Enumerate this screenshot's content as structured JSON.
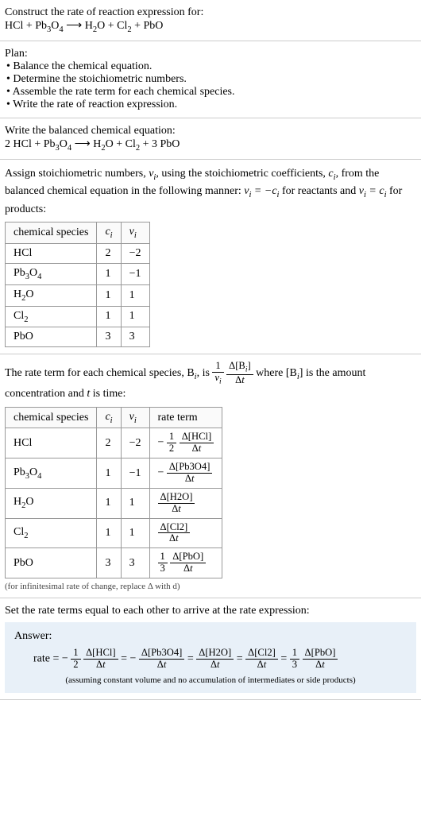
{
  "prompt": {
    "line1": "Construct the rate of reaction expression for:",
    "equation_plain": "HCl + Pb3O4 ⟶ H2O + Cl2 + PbO"
  },
  "plan": {
    "heading": "Plan:",
    "items": [
      "• Balance the chemical equation.",
      "• Determine the stoichiometric numbers.",
      "• Assemble the rate term for each chemical species.",
      "• Write the rate of reaction expression."
    ]
  },
  "balanced": {
    "heading": "Write the balanced chemical equation:",
    "equation_plain": "2 HCl + Pb3O4 ⟶ H2O + Cl2 + 3 PbO"
  },
  "stoich_intro": {
    "text_a": "Assign stoichiometric numbers, ",
    "nu_i": "νᵢ",
    "text_b": ", using the stoichiometric coefficients, ",
    "c_i": "cᵢ",
    "text_c": ", from the balanced chemical equation in the following manner: ",
    "rel1": "νᵢ = −cᵢ",
    "text_d": " for reactants and ",
    "rel2": "νᵢ = cᵢ",
    "text_e": " for products:"
  },
  "table1": {
    "headers": [
      "chemical species",
      "cᵢ",
      "νᵢ"
    ],
    "rows": [
      {
        "species": "HCl",
        "c": "2",
        "nu": "−2"
      },
      {
        "species": "Pb3O4",
        "c": "1",
        "nu": "−1"
      },
      {
        "species": "H2O",
        "c": "1",
        "nu": "1"
      },
      {
        "species": "Cl2",
        "c": "1",
        "nu": "1"
      },
      {
        "species": "PbO",
        "c": "3",
        "nu": "3"
      }
    ]
  },
  "rate_intro": {
    "text_a": "The rate term for each chemical species, B",
    "text_b": ", is ",
    "text_c": " where [B",
    "text_d": "] is the amount concentration and ",
    "t_var": "t",
    "text_e": " is time:"
  },
  "table2": {
    "headers": [
      "chemical species",
      "cᵢ",
      "νᵢ",
      "rate term"
    ],
    "rows": [
      {
        "species": "HCl",
        "c": "2",
        "nu": "−2",
        "sign": "−",
        "coef_num": "1",
        "coef_den": "2",
        "delta": "Δ[HCl]"
      },
      {
        "species": "Pb3O4",
        "c": "1",
        "nu": "−1",
        "sign": "−",
        "coef_num": "",
        "coef_den": "",
        "delta": "Δ[Pb3O4]"
      },
      {
        "species": "H2O",
        "c": "1",
        "nu": "1",
        "sign": "",
        "coef_num": "",
        "coef_den": "",
        "delta": "Δ[H2O]"
      },
      {
        "species": "Cl2",
        "c": "1",
        "nu": "1",
        "sign": "",
        "coef_num": "",
        "coef_den": "",
        "delta": "Δ[Cl2]"
      },
      {
        "species": "PbO",
        "c": "3",
        "nu": "3",
        "sign": "",
        "coef_num": "1",
        "coef_den": "3",
        "delta": "Δ[PbO]"
      }
    ],
    "dt": "Δt",
    "note": "(for infinitesimal rate of change, replace Δ with d)"
  },
  "final_heading": "Set the rate terms equal to each other to arrive at the rate expression:",
  "answer": {
    "label": "Answer:",
    "rate_prefix": "rate = ",
    "terms": [
      {
        "sign": "−",
        "coef_num": "1",
        "coef_den": "2",
        "delta": "Δ[HCl]"
      },
      {
        "sign": "−",
        "coef_num": "",
        "coef_den": "",
        "delta": "Δ[Pb3O4]"
      },
      {
        "sign": "",
        "coef_num": "",
        "coef_den": "",
        "delta": "Δ[H2O]"
      },
      {
        "sign": "",
        "coef_num": "",
        "coef_den": "",
        "delta": "Δ[Cl2]"
      },
      {
        "sign": "",
        "coef_num": "1",
        "coef_den": "3",
        "delta": "Δ[PbO]"
      }
    ],
    "dt": "Δt",
    "note": "(assuming constant volume and no accumulation of intermediates or side products)"
  },
  "style": {
    "answer_bg": "#e8f0f8",
    "border_color": "#cccccc",
    "table_border": "#999999"
  }
}
